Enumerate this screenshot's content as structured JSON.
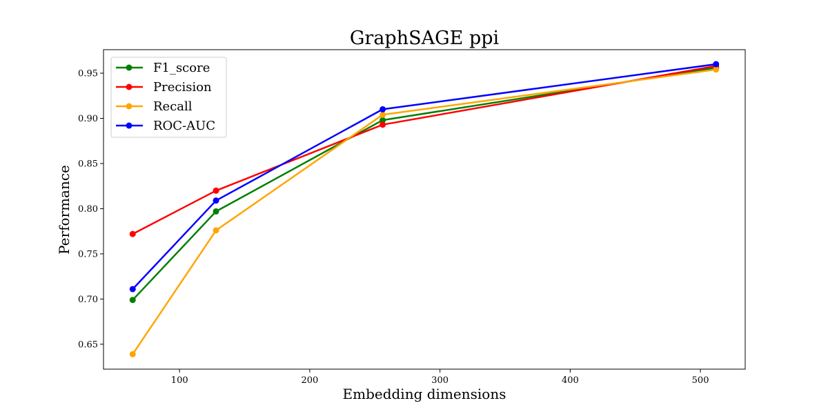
{
  "chart_data": {
    "type": "line",
    "title": "GraphSAGE ppi",
    "xlabel": "Embedding dimensions",
    "ylabel": "Performance",
    "xlim": [
      41.6,
      534.4
    ],
    "ylim": [
      0.6224,
      0.976
    ],
    "xticks": [
      100,
      200,
      300,
      400,
      500
    ],
    "yticks": [
      0.65,
      0.7,
      0.75,
      0.8,
      0.85,
      0.9,
      0.95
    ],
    "x": [
      64,
      128,
      256,
      512
    ],
    "grid": false,
    "legend_position": "top-left",
    "series": [
      {
        "name": "F1_score",
        "color": "#008000",
        "values": [
          0.699,
          0.797,
          0.898,
          0.956
        ]
      },
      {
        "name": "Precision",
        "color": "#ff0000",
        "values": [
          0.772,
          0.82,
          0.893,
          0.958
        ]
      },
      {
        "name": "Recall",
        "color": "#ffa500",
        "values": [
          0.639,
          0.776,
          0.904,
          0.954
        ]
      },
      {
        "name": "ROC-AUC",
        "color": "#0000ff",
        "values": [
          0.711,
          0.809,
          0.91,
          0.96
        ]
      }
    ]
  }
}
